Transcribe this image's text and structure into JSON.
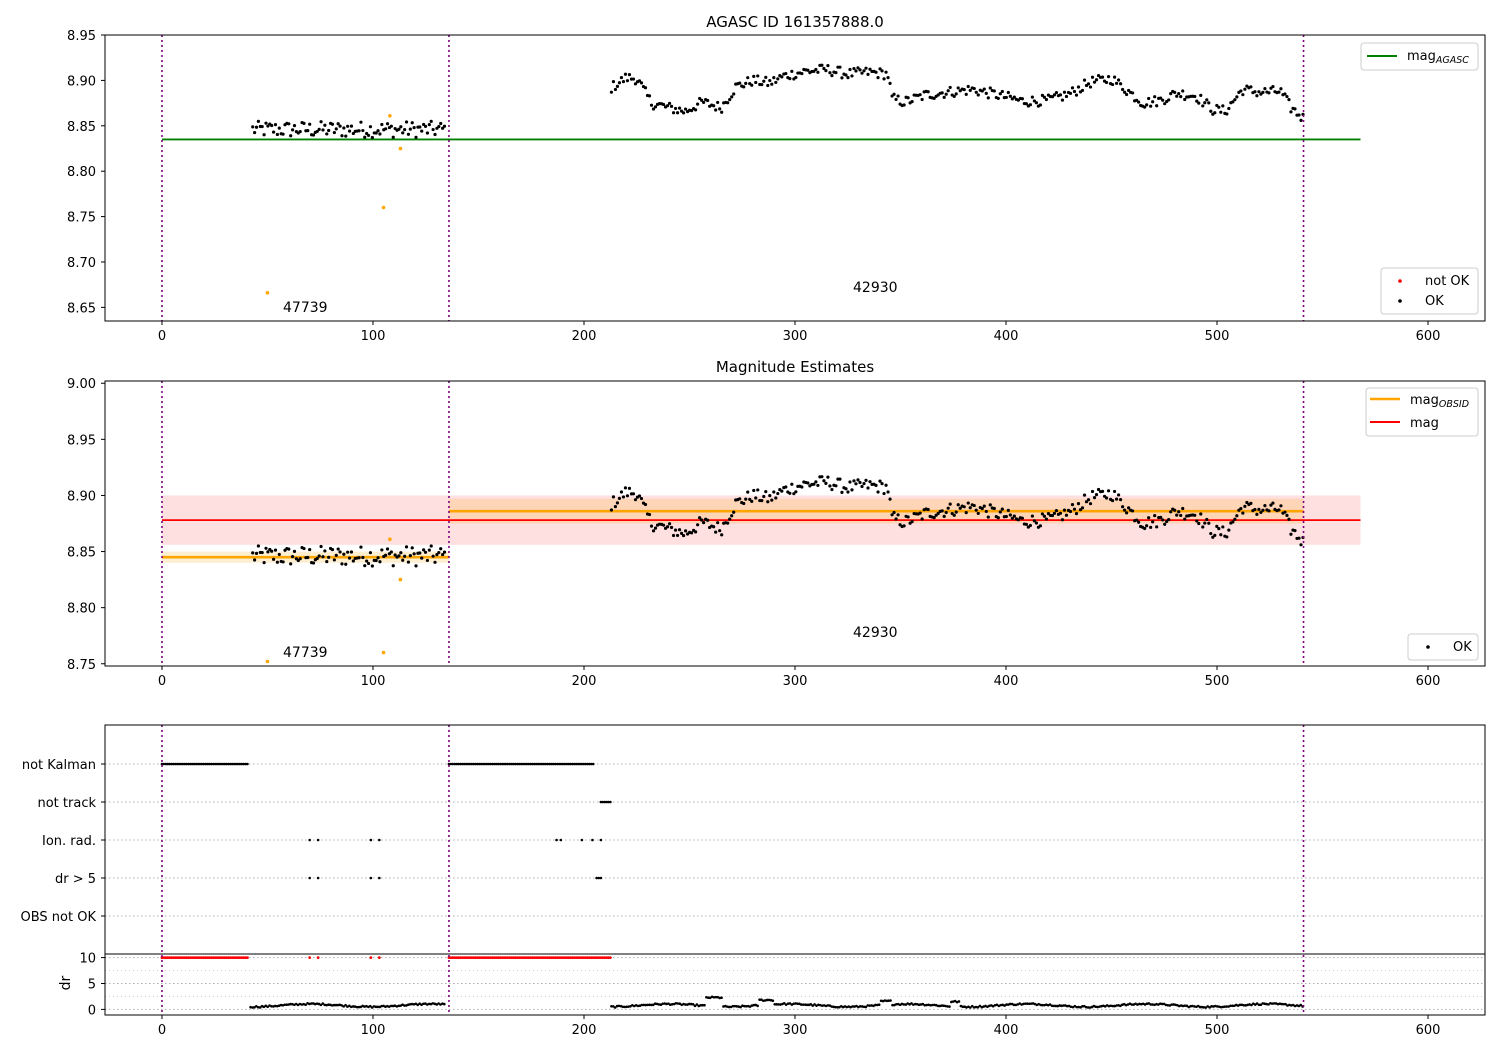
{
  "chart_data": [
    {
      "type": "scatter",
      "title": "AGASC ID 161357888.0",
      "xlim": [
        -27,
        627
      ],
      "ylim": [
        8.635,
        8.95
      ],
      "xticks": [
        0,
        100,
        200,
        300,
        400,
        500,
        600
      ],
      "yticks": [
        8.65,
        8.7,
        8.75,
        8.8,
        8.85,
        8.9,
        8.95
      ],
      "yticklabels": [
        "8.65",
        "8.70",
        "8.75",
        "8.80",
        "8.85",
        "8.90",
        "8.95"
      ],
      "obs_boundaries": [
        0,
        136,
        541
      ],
      "obs_labels": [
        {
          "text": "47739",
          "x": 57,
          "y": 8.652
        },
        {
          "text": "42930",
          "x": 327,
          "y": 8.668
        }
      ],
      "mag_agasc": {
        "value": 8.835,
        "x": [
          0,
          568
        ],
        "color": "#008000",
        "legend_main": "mag",
        "legend_sub": "AGASC"
      },
      "series": [
        {
          "name": "not OK",
          "color": "#ff0000",
          "points": []
        },
        {
          "name": "OK",
          "color": "#000000"
        },
        {
          "color": "#ffa500",
          "points": [
            [
              50,
              8.666
            ],
            [
              105,
              8.76
            ],
            [
              108,
              8.861
            ],
            [
              113,
              8.825
            ]
          ]
        }
      ],
      "legend_position": "top-right / bottom-right"
    },
    {
      "type": "scatter",
      "title": "Magnitude Estimates",
      "xlim": [
        -27,
        627
      ],
      "ylim": [
        8.748,
        9.002
      ],
      "xticks": [
        0,
        100,
        200,
        300,
        400,
        500,
        600
      ],
      "yticks": [
        8.75,
        8.8,
        8.85,
        8.9,
        8.95,
        9.0
      ],
      "yticklabels": [
        "8.75",
        "8.80",
        "8.85",
        "8.90",
        "8.95",
        "9.00"
      ],
      "obs_boundaries": [
        0,
        136,
        541
      ],
      "obs_labels": [
        {
          "text": "47739",
          "x": 57,
          "y": 8.761
        },
        {
          "text": "42930",
          "x": 327,
          "y": 8.777
        }
      ],
      "mag": {
        "value": 8.878,
        "band": [
          8.856,
          8.9
        ],
        "x": [
          0,
          568
        ],
        "color": "#ff0000",
        "label": "mag"
      },
      "mag_obsid": [
        {
          "x": [
            0,
            136
          ],
          "value": 8.845,
          "band": [
            8.84,
            8.85
          ]
        },
        {
          "x": [
            136,
            541
          ],
          "value": 8.886,
          "band": [
            8.875,
            8.897
          ]
        }
      ],
      "mag_obsid_legend": {
        "main": "mag",
        "sub": "OBSID",
        "color": "#ffa500"
      },
      "series": [
        {
          "name": "OK",
          "color": "#000000"
        },
        {
          "color": "#ffa500",
          "points": [
            [
              50,
              8.752
            ],
            [
              105,
              8.76
            ],
            [
              108,
              8.861
            ],
            [
              113,
              8.825
            ]
          ]
        }
      ]
    },
    {
      "type": "scatter",
      "xlim": [
        -27,
        627
      ],
      "xticks": [
        0,
        100,
        200,
        300,
        400,
        500,
        600
      ],
      "obs_boundaries": [
        0,
        136,
        541
      ],
      "flag_rows": [
        "not Kalman",
        "not track",
        "Ion. rad.",
        "dr > 5",
        "OBS not OK"
      ],
      "flags": {
        "not Kalman": {
          "ranges": [
            [
              0,
              41
            ],
            [
              136,
              205
            ]
          ]
        },
        "not track": {
          "ranges": [
            [
              208,
              213
            ]
          ]
        },
        "Ion. rad.": {
          "points": [
            70,
            74,
            99,
            103,
            187,
            189,
            199,
            204,
            208
          ]
        },
        "dr > 5": {
          "points": [
            70,
            74,
            99,
            103,
            206,
            207,
            208
          ]
        },
        "OBS not OK": {
          "points": []
        }
      },
      "dr": {
        "ylabel": "dr",
        "ylim": [
          -0.5,
          10.5
        ],
        "yticks": [
          0,
          5,
          10
        ],
        "yticklabels": [
          "0",
          "5",
          "10"
        ],
        "clipped_value": 10,
        "clipped_color": "#ff0000",
        "clipped_ranges": [
          [
            0,
            41
          ],
          [
            136,
            213
          ]
        ],
        "clipped_points": [
          70,
          74,
          99,
          103
        ]
      }
    }
  ]
}
